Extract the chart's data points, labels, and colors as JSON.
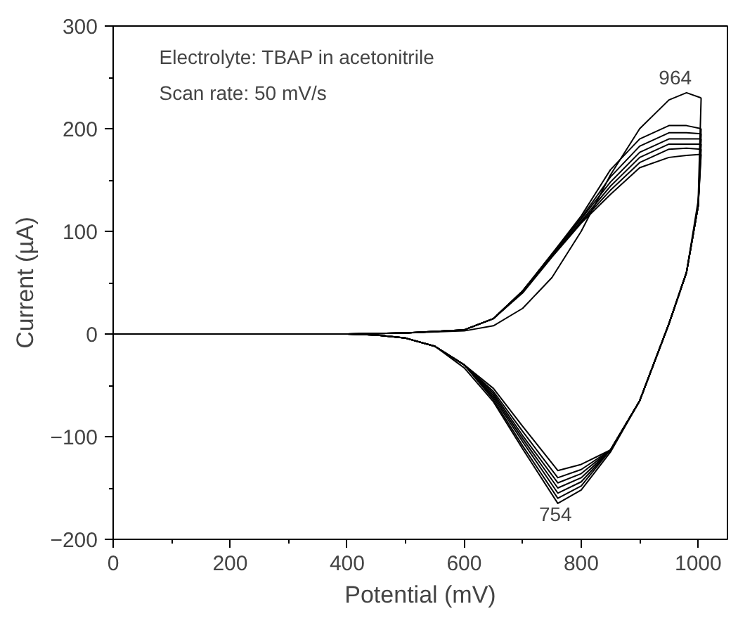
{
  "chart_data": {
    "type": "line",
    "xlabel": "Potential (mV)",
    "ylabel": "Current (µA)",
    "xlim": [
      0,
      1050
    ],
    "ylim": [
      -200,
      300
    ],
    "xticks": [
      0,
      200,
      400,
      600,
      800,
      1000
    ],
    "yticks": [
      -200,
      -100,
      0,
      100,
      200,
      300
    ],
    "grid": false,
    "marker": "none",
    "line_style": "solid",
    "annotations": [
      "Electrolyte: TBAP in acetonitrile",
      "Scan rate: 50 mV/s",
      "964",
      "754"
    ],
    "series": [
      {
        "color": "#000000",
        "x": [
          0,
          400,
          500,
          600,
          650,
          700,
          750,
          800,
          850,
          900,
          950,
          980,
          1005
        ],
        "values": [
          0,
          0,
          1,
          3,
          8,
          25,
          55,
          100,
          155,
          200,
          228,
          235,
          230
        ]
      },
      {
        "color": "#000000",
        "x": [
          0,
          400,
          450,
          500,
          550,
          600,
          650,
          700,
          760,
          800,
          850,
          900,
          950,
          980,
          1000,
          1005
        ],
        "values": [
          0,
          0,
          -1,
          -4,
          -12,
          -33,
          -66,
          -112,
          -165,
          -152,
          -115,
          -65,
          10,
          60,
          130,
          230
        ]
      },
      {
        "color": "#000000",
        "x": [
          0,
          400,
          500,
          600,
          650,
          700,
          750,
          800,
          850,
          900,
          950,
          980,
          1005
        ],
        "values": [
          0,
          0,
          1,
          4,
          15,
          42,
          78,
          115,
          160,
          190,
          203,
          203,
          200
        ]
      },
      {
        "color": "#000000",
        "x": [
          0,
          400,
          450,
          500,
          550,
          600,
          650,
          700,
          760,
          800,
          850,
          900,
          950,
          980,
          1000,
          1005
        ],
        "values": [
          0,
          0,
          -1,
          -4,
          -12,
          -30,
          -64,
          -109,
          -160,
          -148,
          -113,
          -65,
          10,
          60,
          125,
          200
        ]
      },
      {
        "color": "#000000",
        "x": [
          0,
          400,
          500,
          600,
          650,
          700,
          750,
          800,
          850,
          900,
          950,
          980,
          1005
        ],
        "values": [
          0,
          0,
          1,
          4,
          15,
          42,
          78,
          113,
          153,
          183,
          196,
          196,
          195
        ]
      },
      {
        "color": "#000000",
        "x": [
          0,
          400,
          450,
          500,
          550,
          600,
          650,
          700,
          760,
          800,
          850,
          900,
          950,
          980,
          1000,
          1005
        ],
        "values": [
          0,
          0,
          -1,
          -4,
          -12,
          -30,
          -62,
          -105,
          -155,
          -144,
          -113,
          -65,
          10,
          60,
          125,
          195
        ]
      },
      {
        "color": "#000000",
        "x": [
          0,
          400,
          500,
          600,
          650,
          700,
          750,
          800,
          850,
          900,
          950,
          980,
          1005
        ],
        "values": [
          0,
          0,
          1,
          4,
          15,
          42,
          77,
          112,
          148,
          177,
          190,
          190,
          190
        ]
      },
      {
        "color": "#000000",
        "x": [
          0,
          400,
          450,
          500,
          550,
          600,
          650,
          700,
          760,
          800,
          850,
          900,
          950,
          980,
          1000,
          1005
        ],
        "values": [
          0,
          0,
          -1,
          -4,
          -12,
          -30,
          -60,
          -102,
          -150,
          -140,
          -113,
          -65,
          10,
          60,
          125,
          190
        ]
      },
      {
        "color": "#000000",
        "x": [
          0,
          400,
          500,
          600,
          650,
          700,
          750,
          800,
          850,
          900,
          950,
          980,
          1005
        ],
        "values": [
          0,
          0,
          1,
          4,
          15,
          41,
          76,
          110,
          144,
          172,
          185,
          185,
          185
        ]
      },
      {
        "color": "#000000",
        "x": [
          0,
          400,
          450,
          500,
          550,
          600,
          650,
          700,
          760,
          800,
          850,
          900,
          950,
          980,
          1000,
          1005
        ],
        "values": [
          0,
          0,
          -1,
          -4,
          -12,
          -30,
          -58,
          -99,
          -145,
          -136,
          -113,
          -65,
          10,
          60,
          125,
          185
        ]
      },
      {
        "color": "#000000",
        "x": [
          0,
          400,
          500,
          600,
          650,
          700,
          750,
          800,
          850,
          900,
          950,
          980,
          1005
        ],
        "values": [
          0,
          0,
          1,
          4,
          15,
          41,
          76,
          109,
          140,
          167,
          180,
          181,
          180
        ]
      },
      {
        "color": "#000000",
        "x": [
          0,
          400,
          450,
          500,
          550,
          600,
          650,
          700,
          760,
          800,
          850,
          900,
          950,
          980,
          1000,
          1005
        ],
        "values": [
          0,
          0,
          -1,
          -4,
          -12,
          -30,
          -56,
          -95,
          -140,
          -132,
          -113,
          -65,
          10,
          60,
          125,
          180
        ]
      },
      {
        "color": "#000000",
        "x": [
          0,
          400,
          500,
          600,
          650,
          700,
          750,
          800,
          850,
          900,
          950,
          980,
          1005
        ],
        "values": [
          0,
          0,
          1,
          4,
          15,
          40,
          75,
          108,
          136,
          162,
          172,
          174,
          175
        ]
      },
      {
        "color": "#000000",
        "x": [
          0,
          400,
          450,
          500,
          550,
          600,
          650,
          700,
          760,
          800,
          850,
          900,
          950,
          980,
          1000,
          1005
        ],
        "values": [
          0,
          0,
          -1,
          -4,
          -12,
          -30,
          -53,
          -90,
          -133,
          -127,
          -113,
          -65,
          10,
          60,
          125,
          175
        ]
      }
    ]
  }
}
